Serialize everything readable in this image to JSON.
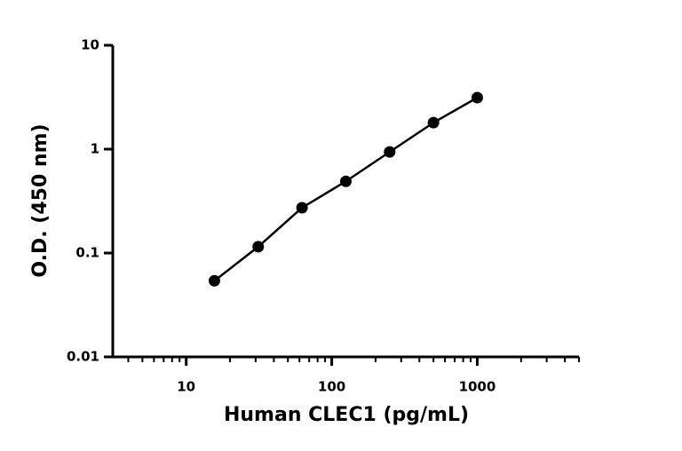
{
  "chart_data": {
    "type": "line",
    "x_label": "Human CLEC1 (pg/mL)",
    "y_label": "O.D. (450 nm)",
    "x": [
      15.625,
      31.25,
      62.5,
      125,
      250,
      500,
      1000
    ],
    "series": [
      {
        "color": "#000000",
        "values": [
          0.054,
          0.115,
          0.273,
          0.49,
          0.94,
          1.8,
          3.13
        ]
      }
    ],
    "xlim": [
      3,
      5000
    ],
    "ylim": [
      0.01,
      10
    ],
    "xticks": [
      10,
      100,
      1000
    ],
    "xminorticks": [
      4,
      5,
      6,
      7,
      8,
      9,
      20,
      30,
      40,
      50,
      60,
      70,
      80,
      90,
      200,
      300,
      400,
      500,
      600,
      700,
      800,
      900,
      2000,
      3000,
      4000,
      5000
    ],
    "yticks": [
      0.01,
      0.1,
      1,
      10
    ],
    "xlog": true,
    "ylog": true,
    "grid": false
  }
}
